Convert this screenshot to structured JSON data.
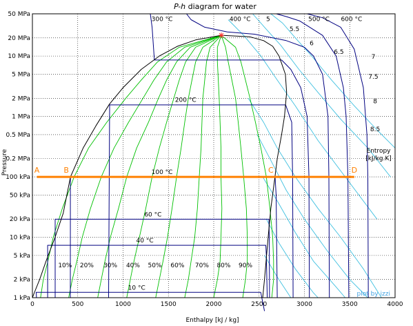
{
  "chart_data": {
    "type": "line",
    "title": "P-h diagram for water",
    "title_parts": [
      "P-h",
      " diagram for water"
    ],
    "xlabel": "Enthalpy [kJ / kg]",
    "ylabel": "Pressure",
    "xlim": [
      0,
      4000
    ],
    "ylim_kpa": [
      1,
      50000
    ],
    "yscale": "log",
    "grid": true,
    "x_ticks": [
      "0",
      "500",
      "1000",
      "1500",
      "2000",
      "2500",
      "3000",
      "3500",
      "4000"
    ],
    "y_ticks": [
      {
        "label": "1 kPa",
        "p": 1
      },
      {
        "label": "2 kPa",
        "p": 2
      },
      {
        "label": "5 kPa",
        "p": 5
      },
      {
        "label": "10 kPa",
        "p": 10
      },
      {
        "label": "20 kPa",
        "p": 20
      },
      {
        "label": "50 kPa",
        "p": 50
      },
      {
        "label": "100 kPa",
        "p": 100
      },
      {
        "label": "0.2 MPa",
        "p": 200
      },
      {
        "label": "0.5 MPa",
        "p": 500
      },
      {
        "label": "1 MPa",
        "p": 1000
      },
      {
        "label": "2 MPa",
        "p": 2000
      },
      {
        "label": "5 MPa",
        "p": 5000
      },
      {
        "label": "10 MPa",
        "p": 10000
      },
      {
        "label": "20 MPa",
        "p": 20000
      },
      {
        "label": "50 MPa",
        "p": 50000
      }
    ],
    "saturation_dome": {
      "color": "#000000",
      "critical_point": {
        "h": 2084,
        "p": 22064
      },
      "liquid": [
        [
          0,
          1
        ],
        [
          30,
          1.3
        ],
        [
          80,
          2
        ],
        [
          150,
          4
        ],
        [
          250,
          10
        ],
        [
          340,
          25
        ],
        [
          420,
          100
        ],
        [
          560,
          300
        ],
        [
          700,
          700
        ],
        [
          850,
          1600
        ],
        [
          1000,
          3000
        ],
        [
          1200,
          6000
        ],
        [
          1400,
          10000
        ],
        [
          1600,
          14500
        ],
        [
          1800,
          18500
        ],
        [
          2084,
          22064
        ]
      ],
      "vapor": [
        [
          2084,
          22064
        ],
        [
          2400,
          20800
        ],
        [
          2550,
          18000
        ],
        [
          2650,
          14500
        ],
        [
          2720,
          10000
        ],
        [
          2790,
          5000
        ],
        [
          2804,
          2500
        ],
        [
          2780,
          1000
        ],
        [
          2748,
          500
        ],
        [
          2700,
          200
        ],
        [
          2675,
          100
        ],
        [
          2630,
          30
        ],
        [
          2600,
          10
        ],
        [
          2560,
          2
        ],
        [
          2540,
          1
        ]
      ]
    },
    "isotherms": {
      "color": "#000080",
      "labels": [
        "10 °C",
        "40 °C",
        "60 °C",
        "100 °C",
        "200 °C",
        "300 °C",
        "400 °C",
        "500 °C",
        "600 °C"
      ],
      "lines": [
        [
          [
            45,
            1
          ],
          [
            42,
            1.228
          ],
          [
            2519,
            1.228
          ],
          [
            2530,
            1
          ],
          [
            2560,
            0.6
          ]
        ],
        [
          [
            168,
            1
          ],
          [
            168,
            7.38
          ],
          [
            2574,
            7.38
          ],
          [
            2580,
            5
          ],
          [
            2590,
            1
          ]
        ],
        [
          [
            251,
            1
          ],
          [
            251,
            19.9
          ],
          [
            2609,
            19.9
          ],
          [
            2612,
            10
          ],
          [
            2615,
            1
          ]
        ],
        [
          [
            418,
            1
          ],
          [
            419,
            101.3
          ],
          [
            2676,
            101.3
          ],
          [
            2688,
            50
          ],
          [
            2700,
            1
          ]
        ],
        [
          [
            840,
            1
          ],
          [
            852,
            1554
          ],
          [
            2793,
            1554
          ],
          [
            2860,
            800
          ],
          [
            2870,
            100
          ],
          [
            2875,
            1
          ]
        ],
        [
          [
            1300,
            50000
          ],
          [
            1320,
            30000
          ],
          [
            1345,
            8590
          ],
          [
            2749,
            8590
          ],
          [
            2850,
            6000
          ],
          [
            2960,
            3000
          ],
          [
            3030,
            1000
          ],
          [
            3050,
            100
          ],
          [
            3055,
            1
          ]
        ],
        [
          [
            1700,
            50000
          ],
          [
            1750,
            40000
          ],
          [
            1900,
            30000
          ],
          [
            2150,
            25000
          ],
          [
            2450,
            23000
          ],
          [
            2800,
            18000
          ],
          [
            3000,
            14000
          ],
          [
            3100,
            10000
          ],
          [
            3200,
            5000
          ],
          [
            3260,
            1000
          ],
          [
            3270,
            100
          ],
          [
            3275,
            1
          ]
        ],
        [
          [
            2690,
            50000
          ],
          [
            2800,
            45000
          ],
          [
            2950,
            38000
          ],
          [
            3200,
            22000
          ],
          [
            3350,
            10000
          ],
          [
            3430,
            3000
          ],
          [
            3460,
            1000
          ],
          [
            3480,
            100
          ],
          [
            3490,
            1
          ]
        ],
        [
          [
            3030,
            50000
          ],
          [
            3200,
            43000
          ],
          [
            3400,
            30000
          ],
          [
            3550,
            13000
          ],
          [
            3650,
            3000
          ],
          [
            3690,
            500
          ],
          [
            3700,
            100
          ],
          [
            3705,
            1
          ]
        ]
      ]
    },
    "isentropes": {
      "color": "#40c0e0",
      "labels": [
        "5",
        "5.5",
        "6",
        "6.5",
        "7",
        "7.5",
        "8",
        "8.5"
      ],
      "label_title": "Entropy [kJ/kg.K]",
      "lines": [
        [
          [
            2160,
            40000
          ],
          [
            2330,
            22000
          ],
          [
            2520,
            10000
          ],
          [
            2700,
            4000
          ],
          [
            2900,
            1500
          ],
          [
            3150,
            400
          ],
          [
            3450,
            100
          ],
          [
            3800,
            20
          ]
        ],
        [
          [
            2430,
            50000
          ],
          [
            2560,
            30000
          ],
          [
            2740,
            15000
          ],
          [
            2940,
            6000
          ],
          [
            3150,
            2500
          ],
          [
            3400,
            900
          ],
          [
            3700,
            300
          ],
          [
            3950,
            100
          ]
        ],
        [
          [
            2630,
            50000
          ],
          [
            2760,
            35000
          ],
          [
            2900,
            20000
          ],
          [
            3080,
            10000
          ],
          [
            3300,
            4000
          ],
          [
            3550,
            1500
          ],
          [
            3800,
            600
          ],
          [
            4000,
            300
          ]
        ],
        [
          [
            2380,
            2000
          ],
          [
            2550,
            800
          ],
          [
            2700,
            300
          ],
          [
            2900,
            100
          ],
          [
            3150,
            30
          ],
          [
            3400,
            10
          ],
          [
            3650,
            3
          ],
          [
            3850,
            1
          ]
        ],
        [
          [
            2480,
            500
          ],
          [
            2620,
            200
          ],
          [
            2800,
            60
          ],
          [
            3000,
            20
          ],
          [
            3250,
            6
          ],
          [
            3500,
            2
          ],
          [
            3700,
            1
          ]
        ],
        [
          [
            2540,
            100
          ],
          [
            2700,
            40
          ],
          [
            2900,
            12
          ],
          [
            3100,
            4
          ],
          [
            3350,
            1.5
          ],
          [
            3450,
            1
          ]
        ],
        [
          [
            2580,
            20
          ],
          [
            2720,
            8
          ],
          [
            2900,
            3
          ],
          [
            3100,
            1.2
          ],
          [
            3150,
            1
          ]
        ],
        [
          [
            2560,
            5
          ],
          [
            2700,
            2.2
          ],
          [
            2850,
            1
          ]
        ]
      ]
    },
    "quality_lines": {
      "color": "#00c000",
      "labels": [
        "10%",
        "20%",
        "30%",
        "40%",
        "50%",
        "60%",
        "70%",
        "80%",
        "90%"
      ],
      "lines": [
        [
          [
            2084,
            22064
          ],
          [
            1620,
            14000
          ],
          [
            1380,
            8000
          ],
          [
            1200,
            4000
          ],
          [
            1030,
            2000
          ],
          [
            820,
            800
          ],
          [
            620,
            300
          ],
          [
            460,
            100
          ],
          [
            330,
            30
          ],
          [
            230,
            10
          ],
          [
            170,
            4
          ],
          [
            120,
            2
          ],
          [
            90,
            1
          ]
        ],
        [
          [
            2084,
            22064
          ],
          [
            1680,
            14000
          ],
          [
            1480,
            8000
          ],
          [
            1340,
            4000
          ],
          [
            1220,
            2000
          ],
          [
            1060,
            800
          ],
          [
            900,
            300
          ],
          [
            760,
            100
          ],
          [
            640,
            30
          ],
          [
            550,
            10
          ],
          [
            490,
            4
          ],
          [
            440,
            2
          ],
          [
            400,
            1
          ]
        ],
        [
          [
            2084,
            22064
          ],
          [
            1740,
            14000
          ],
          [
            1590,
            8000
          ],
          [
            1480,
            4000
          ],
          [
            1390,
            2000
          ],
          [
            1280,
            800
          ],
          [
            1150,
            300
          ],
          [
            1040,
            100
          ],
          [
            950,
            30
          ],
          [
            860,
            10
          ],
          [
            800,
            4
          ],
          [
            760,
            2
          ],
          [
            720,
            1
          ]
        ],
        [
          [
            2084,
            22064
          ],
          [
            1800,
            14000
          ],
          [
            1690,
            8000
          ],
          [
            1620,
            4000
          ],
          [
            1560,
            2000
          ],
          [
            1480,
            800
          ],
          [
            1400,
            300
          ],
          [
            1320,
            100
          ],
          [
            1250,
            30
          ],
          [
            1180,
            10
          ],
          [
            1120,
            4
          ],
          [
            1080,
            2
          ],
          [
            1040,
            1
          ]
        ],
        [
          [
            2084,
            22064
          ],
          [
            1880,
            14000
          ],
          [
            1800,
            8000
          ],
          [
            1760,
            4000
          ],
          [
            1720,
            2000
          ],
          [
            1680,
            800
          ],
          [
            1640,
            300
          ],
          [
            1590,
            100
          ],
          [
            1540,
            30
          ],
          [
            1490,
            10
          ],
          [
            1440,
            4
          ],
          [
            1400,
            2
          ],
          [
            1360,
            1
          ]
        ],
        [
          [
            2084,
            22064
          ],
          [
            1960,
            14000
          ],
          [
            1920,
            8000
          ],
          [
            1900,
            4000
          ],
          [
            1880,
            2000
          ],
          [
            1870,
            800
          ],
          [
            1860,
            300
          ],
          [
            1840,
            100
          ],
          [
            1820,
            30
          ],
          [
            1790,
            10
          ],
          [
            1750,
            4
          ],
          [
            1720,
            2
          ],
          [
            1680,
            1
          ]
        ],
        [
          [
            2084,
            22064
          ],
          [
            2040,
            14000
          ],
          [
            2040,
            8000
          ],
          [
            2050,
            4000
          ],
          [
            2060,
            2000
          ],
          [
            2070,
            800
          ],
          [
            2080,
            300
          ],
          [
            2080,
            100
          ],
          [
            2090,
            30
          ],
          [
            2080,
            10
          ],
          [
            2070,
            4
          ],
          [
            2040,
            2
          ],
          [
            2000,
            1
          ]
        ],
        [
          [
            2084,
            22064
          ],
          [
            2130,
            14000
          ],
          [
            2160,
            8000
          ],
          [
            2200,
            4000
          ],
          [
            2240,
            2000
          ],
          [
            2270,
            800
          ],
          [
            2300,
            300
          ],
          [
            2330,
            100
          ],
          [
            2360,
            30
          ],
          [
            2370,
            10
          ],
          [
            2370,
            4
          ],
          [
            2350,
            2
          ],
          [
            2320,
            1
          ]
        ],
        [
          [
            2084,
            22064
          ],
          [
            2240,
            14000
          ],
          [
            2300,
            8000
          ],
          [
            2350,
            4000
          ],
          [
            2400,
            2000
          ],
          [
            2460,
            800
          ],
          [
            2520,
            300
          ],
          [
            2580,
            100
          ],
          [
            2620,
            30
          ],
          [
            2650,
            10
          ],
          [
            2660,
            4
          ],
          [
            2660,
            2
          ],
          [
            2640,
            1
          ]
        ]
      ]
    },
    "process_line": {
      "color": "#ff8000",
      "p": 100,
      "points": [
        {
          "label": "A",
          "h": 50
        },
        {
          "label": "B",
          "h": 419
        },
        {
          "label": "C",
          "h": 2676
        },
        {
          "label": "D",
          "h": 3550
        }
      ]
    },
    "watermark": "plot by izzi",
    "watermark_color": "#40a0e0"
  }
}
